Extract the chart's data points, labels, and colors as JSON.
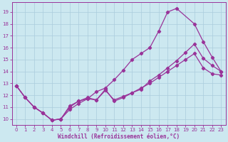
{
  "xlabel": "Windchill (Refroidissement éolien,°C)",
  "xlim": [
    -0.5,
    23.5
  ],
  "ylim": [
    9.5,
    19.8
  ],
  "xticks": [
    0,
    1,
    2,
    3,
    4,
    5,
    6,
    7,
    8,
    9,
    10,
    11,
    12,
    13,
    14,
    15,
    16,
    17,
    18,
    19,
    20,
    21,
    22,
    23
  ],
  "yticks": [
    10,
    11,
    12,
    13,
    14,
    15,
    16,
    17,
    18,
    19
  ],
  "background_color": "#cce8f0",
  "grid_color": "#aaccdd",
  "line_color": "#993399",
  "curve1_x": [
    0,
    1,
    2,
    3,
    4,
    5,
    6,
    7,
    8,
    9,
    10,
    11,
    12,
    13,
    14,
    15,
    16,
    17,
    18,
    20,
    21,
    22,
    23
  ],
  "curve1_y": [
    12.8,
    11.8,
    11.0,
    10.5,
    9.9,
    10.0,
    10.8,
    11.3,
    11.7,
    12.3,
    12.6,
    13.3,
    14.1,
    15.0,
    15.5,
    16.0,
    17.4,
    19.0,
    19.3,
    18.0,
    16.5,
    15.2,
    14.0
  ],
  "curve2_x": [
    0,
    1,
    2,
    3,
    4,
    5,
    6,
    7,
    8,
    9,
    10,
    11,
    12,
    13,
    14,
    15,
    16,
    17,
    18,
    19,
    20,
    21,
    22,
    23
  ],
  "curve2_y": [
    12.8,
    11.8,
    11.0,
    10.5,
    9.9,
    10.0,
    11.0,
    11.5,
    11.8,
    11.6,
    12.5,
    11.5,
    11.8,
    12.2,
    12.5,
    13.2,
    13.7,
    14.3,
    14.9,
    15.6,
    16.3,
    15.1,
    14.5,
    14.0
  ],
  "curve3_x": [
    0,
    1,
    2,
    3,
    4,
    5,
    6,
    7,
    8,
    9,
    10,
    11,
    12,
    13,
    14,
    15,
    16,
    17,
    18,
    19,
    20,
    21,
    22,
    23
  ],
  "curve3_y": [
    12.8,
    11.8,
    11.0,
    10.5,
    9.9,
    10.0,
    11.1,
    11.5,
    11.7,
    11.6,
    12.4,
    11.6,
    11.9,
    12.2,
    12.6,
    13.0,
    13.5,
    14.0,
    14.5,
    15.0,
    15.5,
    14.3,
    13.8,
    13.7
  ]
}
